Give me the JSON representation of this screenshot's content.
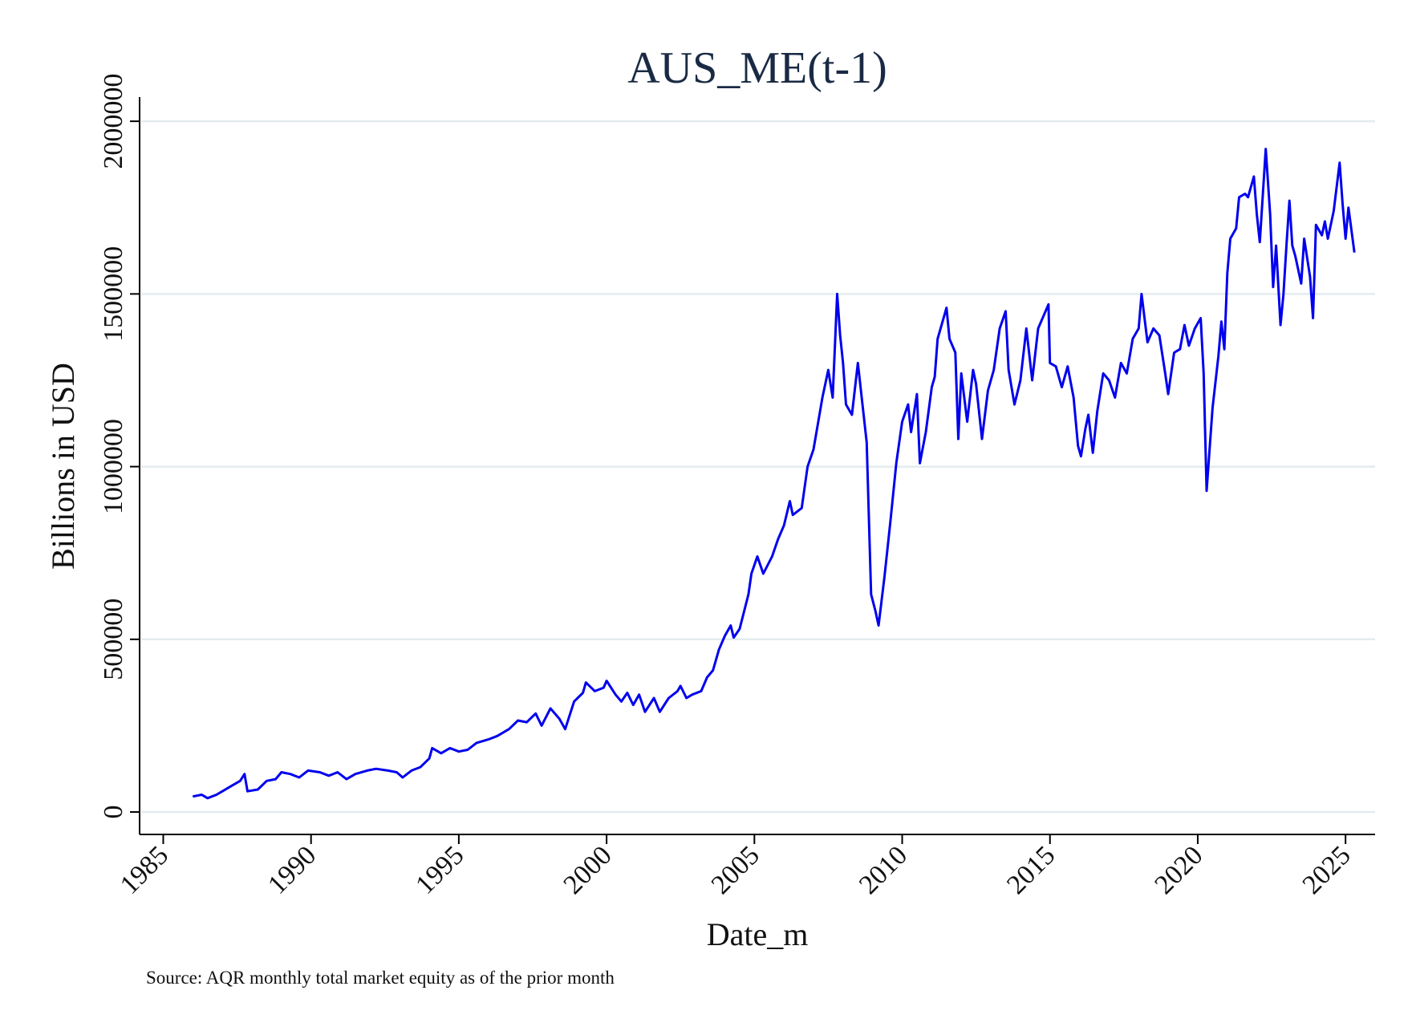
{
  "chart_data": {
    "type": "line",
    "title": "AUS_ME(t-1)",
    "x_label": "Date_m",
    "y_label": "Billions in USD",
    "note": "Source: AQR monthly total market equity as of the prior month",
    "xlim": [
      1984.2,
      2026
    ],
    "xticks": [
      1985,
      1990,
      1995,
      2000,
      2005,
      2010,
      2015,
      2020,
      2025
    ],
    "ylim": [
      -65000,
      2070000
    ],
    "yticks": [
      0,
      500000,
      1000000,
      1500000,
      2000000
    ],
    "grid": true,
    "series": [
      {
        "color": "#0000ee",
        "x": [
          1986.0,
          1986.3,
          1986.5,
          1986.8,
          1987.0,
          1987.3,
          1987.6,
          1987.75,
          1987.85,
          1988.2,
          1988.5,
          1988.8,
          1989.0,
          1989.3,
          1989.6,
          1989.9,
          1990.3,
          1990.6,
          1990.9,
          1991.2,
          1991.5,
          1991.9,
          1992.2,
          1992.6,
          1992.9,
          1993.1,
          1993.4,
          1993.7,
          1994.0,
          1994.1,
          1994.4,
          1994.7,
          1995.0,
          1995.3,
          1995.6,
          1996.0,
          1996.3,
          1996.7,
          1997.0,
          1997.3,
          1997.6,
          1997.8,
          1998.1,
          1998.4,
          1998.6,
          1998.9,
          1999.2,
          1999.3,
          1999.6,
          1999.9,
          2000.0,
          2000.3,
          2000.5,
          2000.7,
          2000.9,
          2001.1,
          2001.3,
          2001.6,
          2001.8,
          2002.1,
          2002.4,
          2002.5,
          2002.7,
          2002.9,
          2003.2,
          2003.4,
          2003.6,
          2003.8,
          2004.0,
          2004.2,
          2004.3,
          2004.5,
          2004.8,
          2004.9,
          2005.1,
          2005.3,
          2005.6,
          2005.8,
          2006.0,
          2006.2,
          2006.3,
          2006.6,
          2006.8,
          2007.0,
          2007.3,
          2007.5,
          2007.65,
          2007.8,
          2007.9,
          2008.0,
          2008.1,
          2008.3,
          2008.5,
          2008.8,
          2008.95,
          2009.1,
          2009.2,
          2009.4,
          2009.6,
          2009.8,
          2010.0,
          2010.2,
          2010.3,
          2010.5,
          2010.6,
          2010.8,
          2011.0,
          2011.1,
          2011.2,
          2011.5,
          2011.6,
          2011.8,
          2011.9,
          2012.0,
          2012.2,
          2012.4,
          2012.5,
          2012.7,
          2012.9,
          2013.1,
          2013.3,
          2013.5,
          2013.6,
          2013.8,
          2014.0,
          2014.2,
          2014.4,
          2014.6,
          2014.8,
          2014.95,
          2015.0,
          2015.2,
          2015.4,
          2015.6,
          2015.8,
          2015.95,
          2016.05,
          2016.2,
          2016.3,
          2016.45,
          2016.6,
          2016.8,
          2017.0,
          2017.2,
          2017.4,
          2017.6,
          2017.8,
          2018.0,
          2018.1,
          2018.3,
          2018.5,
          2018.7,
          2018.9,
          2019.0,
          2019.2,
          2019.4,
          2019.55,
          2019.7,
          2019.9,
          2020.1,
          2020.2,
          2020.3,
          2020.5,
          2020.7,
          2020.8,
          2020.9,
          2021.0,
          2021.1,
          2021.3,
          2021.4,
          2021.6,
          2021.7,
          2021.9,
          2022.0,
          2022.1,
          2022.3,
          2022.45,
          2022.55,
          2022.65,
          2022.8,
          2022.9,
          2023.0,
          2023.1,
          2023.2,
          2023.3,
          2023.5,
          2023.6,
          2023.8,
          2023.9,
          2024.0,
          2024.2,
          2024.3,
          2024.4,
          2024.6,
          2024.8,
          2024.9,
          2025.0,
          2025.1,
          2025.3
        ],
        "values": [
          45000,
          50000,
          40000,
          50000,
          60000,
          75000,
          90000,
          110000,
          60000,
          65000,
          90000,
          95000,
          115000,
          110000,
          100000,
          120000,
          115000,
          105000,
          115000,
          95000,
          110000,
          120000,
          125000,
          120000,
          115000,
          100000,
          120000,
          130000,
          155000,
          185000,
          170000,
          185000,
          175000,
          180000,
          200000,
          210000,
          220000,
          240000,
          265000,
          260000,
          285000,
          250000,
          300000,
          270000,
          240000,
          320000,
          345000,
          375000,
          350000,
          360000,
          380000,
          340000,
          320000,
          345000,
          310000,
          340000,
          290000,
          330000,
          290000,
          330000,
          350000,
          365000,
          330000,
          340000,
          350000,
          390000,
          410000,
          470000,
          510000,
          540000,
          505000,
          530000,
          630000,
          690000,
          740000,
          690000,
          740000,
          790000,
          830000,
          900000,
          860000,
          880000,
          1000000,
          1050000,
          1200000,
          1280000,
          1200000,
          1500000,
          1380000,
          1300000,
          1180000,
          1150000,
          1300000,
          1070000,
          630000,
          580000,
          540000,
          680000,
          840000,
          1010000,
          1130000,
          1180000,
          1100000,
          1210000,
          1010000,
          1100000,
          1230000,
          1260000,
          1370000,
          1460000,
          1370000,
          1330000,
          1080000,
          1270000,
          1130000,
          1280000,
          1240000,
          1080000,
          1220000,
          1280000,
          1400000,
          1450000,
          1280000,
          1180000,
          1250000,
          1400000,
          1250000,
          1400000,
          1440000,
          1470000,
          1300000,
          1290000,
          1230000,
          1290000,
          1200000,
          1060000,
          1030000,
          1110000,
          1150000,
          1040000,
          1160000,
          1270000,
          1250000,
          1200000,
          1300000,
          1270000,
          1370000,
          1400000,
          1500000,
          1360000,
          1400000,
          1380000,
          1270000,
          1210000,
          1330000,
          1340000,
          1410000,
          1350000,
          1400000,
          1430000,
          1270000,
          930000,
          1170000,
          1320000,
          1420000,
          1340000,
          1560000,
          1660000,
          1690000,
          1780000,
          1790000,
          1780000,
          1840000,
          1730000,
          1650000,
          1920000,
          1730000,
          1520000,
          1640000,
          1410000,
          1500000,
          1640000,
          1770000,
          1640000,
          1610000,
          1530000,
          1660000,
          1550000,
          1430000,
          1700000,
          1670000,
          1710000,
          1660000,
          1740000,
          1880000,
          1760000,
          1660000,
          1750000,
          1620000
        ]
      }
    ]
  }
}
